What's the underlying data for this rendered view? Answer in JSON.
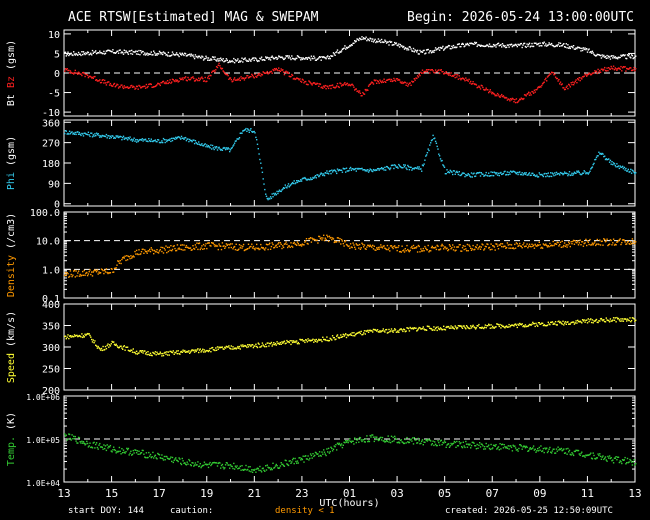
{
  "header": {
    "title": "ACE RTSW[Estimated] MAG & SWEPAM",
    "begin": "Begin: 2026-05-24 13:00:00UTC"
  },
  "footer": {
    "start_doy": "start DOY: 144",
    "caution": "caution:",
    "density_note": "density < 1",
    "created": "created: 2026-05-25 12:50:09UTC"
  },
  "colors": {
    "background": "#000000",
    "bt": "#ffffff",
    "bz": "#ff2020",
    "phi": "#33ccee",
    "density": "#ff9900",
    "speed": "#ffff33",
    "temp": "#33cc33",
    "axes": "#ffffff"
  },
  "chart_data": {
    "type": "scatter",
    "xlabel": "UTC(hours)",
    "x_ticks": [
      "13",
      "15",
      "17",
      "19",
      "21",
      "23",
      "01",
      "03",
      "05",
      "07",
      "09",
      "11",
      "13"
    ],
    "xlim": [
      0,
      24
    ],
    "panels": [
      {
        "id": "mag",
        "ylabel_parts": [
          {
            "text": "Bt",
            "color": "#ffffff"
          },
          {
            "text": "Bz",
            "color": "#ff2020"
          },
          {
            "text": "(gsm)",
            "color": "#ffffff"
          }
        ],
        "scale": "linear",
        "ylim": [
          -11,
          11
        ],
        "ticks": [
          "10",
          "5",
          "0",
          "-5",
          "-10"
        ],
        "tick_values": [
          10,
          5,
          0,
          -5,
          -10
        ],
        "dashed": [
          0
        ],
        "series": [
          {
            "label": "Bt",
            "color": "#ffffff",
            "x": [
              0,
              1,
              2,
              3,
              4,
              5,
              6,
              7,
              8,
              9,
              10,
              11,
              12,
              12.5,
              13,
              14,
              15,
              16,
              17,
              18,
              19,
              20,
              21,
              22,
              22.5,
              23,
              24
            ],
            "y": [
              5,
              5.3,
              5.6,
              5.4,
              5.2,
              4.8,
              3.9,
              3.3,
              3.6,
              4.2,
              4.1,
              3.8,
              7.5,
              9.2,
              8.6,
              7.4,
              5.3,
              6.6,
              7.5,
              7.4,
              7.1,
              7.6,
              7.3,
              5.9,
              4.5,
              4.2,
              4.4
            ]
          },
          {
            "label": "Bz",
            "color": "#ff2020",
            "x": [
              0,
              1,
              2,
              3,
              4,
              5,
              6,
              6.5,
              7,
              8,
              9,
              10,
              11,
              12,
              12.5,
              13,
              14,
              14.5,
              15,
              16,
              17,
              18,
              19,
              20,
              20.5,
              21,
              22,
              23,
              24
            ],
            "y": [
              1,
              -0.5,
              -3,
              -3.6,
              -2.7,
              -1.2,
              -1.5,
              2.2,
              -1.8,
              -0.5,
              1,
              -2,
              -3.5,
              -2.5,
              -5.5,
              -2,
              -1.5,
              -3,
              0.5,
              0.5,
              -2,
              -5,
              -7,
              -3.5,
              0.5,
              -4,
              0,
              1.5,
              1
            ]
          }
        ]
      },
      {
        "id": "phi",
        "ylabel_parts": [
          {
            "text": "Phi",
            "color": "#33ccee"
          },
          {
            "text": "(gsm)",
            "color": "#ffffff"
          }
        ],
        "scale": "linear",
        "ylim": [
          -10,
          370
        ],
        "ticks": [
          "360",
          "270",
          "180",
          "90",
          "0"
        ],
        "tick_values": [
          360,
          270,
          180,
          90,
          0
        ],
        "dashed": [],
        "series": [
          {
            "label": "Phi",
            "color": "#33ccee",
            "x": [
              0,
              1,
              2,
              3,
              4,
              5,
              6,
              7,
              7.5,
              8,
              8.5,
              9,
              9.5,
              10,
              10.5,
              11,
              12,
              13,
              14,
              15,
              15.5,
              16,
              17,
              18,
              19,
              20,
              21,
              22,
              22.5,
              23,
              24
            ],
            "y": [
              320,
              310,
              300,
              285,
              280,
              295,
              255,
              240,
              330,
              325,
              20,
              60,
              90,
              110,
              120,
              140,
              155,
              150,
              170,
              155,
              300,
              145,
              130,
              135,
              140,
              130,
              135,
              140,
              230,
              180,
              140
            ]
          }
        ]
      },
      {
        "id": "density",
        "ylabel_parts": [
          {
            "text": "Density",
            "color": "#ff9900"
          },
          {
            "text": "(/cm3)",
            "color": "#ffffff"
          }
        ],
        "scale": "log",
        "ylim": [
          0.1,
          100
        ],
        "ticks": [
          "100.0",
          "10.0",
          "1.0",
          "0.1"
        ],
        "tick_values": [
          100,
          10,
          1,
          0.1
        ],
        "dashed": [
          10,
          1
        ],
        "series": [
          {
            "label": "Density",
            "color": "#ff9900",
            "x": [
              0,
              1,
              2,
              3,
              4,
              5,
              6,
              7,
              8,
              9,
              10,
              11,
              12,
              13,
              14,
              15,
              16,
              17,
              18,
              19,
              20,
              21,
              22,
              23,
              24
            ],
            "y": [
              0.7,
              0.8,
              0.9,
              4,
              5,
              6,
              7,
              6.5,
              6,
              7,
              9,
              13,
              7,
              6,
              5.5,
              5.5,
              6,
              6,
              6.5,
              7,
              7.5,
              8,
              9,
              9.5,
              10
            ]
          }
        ]
      },
      {
        "id": "speed",
        "ylabel_parts": [
          {
            "text": "Speed",
            "color": "#ffff33"
          },
          {
            "text": "(km/s)",
            "color": "#ffffff"
          }
        ],
        "scale": "linear",
        "ylim": [
          200,
          400
        ],
        "ticks": [
          "400",
          "350",
          "300",
          "250",
          "200"
        ],
        "tick_values": [
          400,
          350,
          300,
          250,
          200
        ],
        "dashed": [],
        "series": [
          {
            "label": "Speed",
            "color": "#ffff33",
            "x": [
              0,
              1,
              1.5,
              2,
              3,
              4,
              5,
              6,
              7,
              8,
              9,
              10,
              11,
              12,
              13,
              14,
              15,
              16,
              17,
              18,
              19,
              20,
              21,
              22,
              23,
              24
            ],
            "y": [
              325,
              330,
              295,
              310,
              290,
              285,
              290,
              295,
              300,
              305,
              310,
              315,
              320,
              330,
              338,
              340,
              345,
              345,
              348,
              350,
              352,
              355,
              358,
              362,
              365,
              365
            ]
          }
        ]
      },
      {
        "id": "temp",
        "ylabel_parts": [
          {
            "text": "Temp.",
            "color": "#33cc33"
          },
          {
            "text": "(K)",
            "color": "#ffffff"
          }
        ],
        "scale": "log",
        "ylim": [
          10000,
          1000000
        ],
        "ticks": [
          "1.0E+06",
          "1.0E+05",
          "1.0E+04"
        ],
        "tick_values": [
          1000000,
          100000,
          10000
        ],
        "dashed": [
          100000
        ],
        "series": [
          {
            "label": "Temp",
            "color": "#33cc33",
            "x": [
              0,
              1,
              2,
              3,
              4,
              5,
              6,
              7,
              8,
              9,
              10,
              11,
              12,
              13,
              14,
              15,
              16,
              17,
              18,
              19,
              20,
              21,
              22,
              23,
              24
            ],
            "y": [
              120000,
              80000,
              60000,
              50000,
              40000,
              30000,
              25000,
              25000,
              20000,
              25000,
              35000,
              50000,
              90000,
              110000,
              100000,
              90000,
              80000,
              75000,
              70000,
              65000,
              60000,
              55000,
              45000,
              35000,
              30000
            ]
          }
        ]
      }
    ]
  }
}
